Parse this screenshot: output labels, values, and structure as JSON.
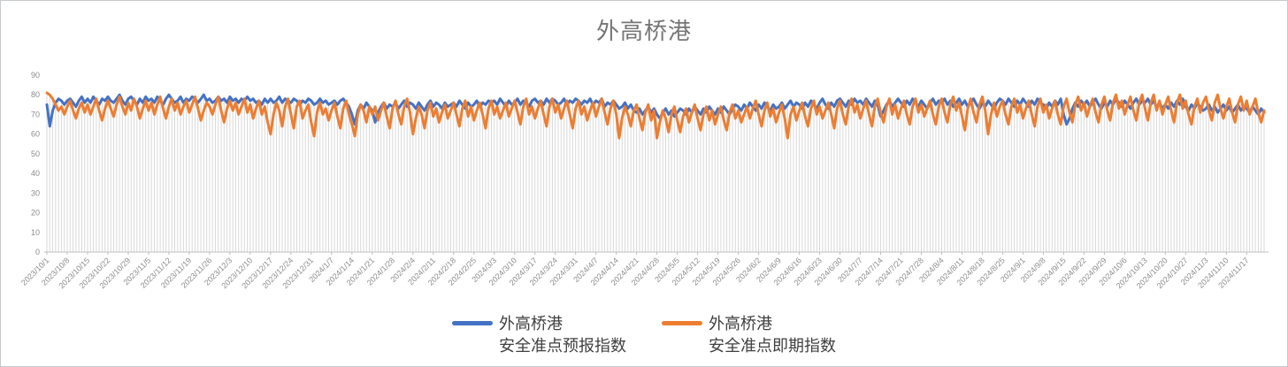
{
  "title": "外高桥港",
  "colors": {
    "series1": "#4472C4",
    "series2": "#ED7D31",
    "drop_line": "#D9D9D9",
    "axis_line": "#BFBFBF",
    "axis_text": "#8C8C8C",
    "title_text": "#767676",
    "legend_text": "#404040",
    "frame_border": "#C6CACD"
  },
  "legend": {
    "items": [
      {
        "label_line1": "外高桥港",
        "label_line2": "安全准点预报指数"
      },
      {
        "label_line1": "外高桥港",
        "label_line2": "安全准点即期指数"
      }
    ]
  },
  "chart_data": {
    "type": "line",
    "title": "外高桥港",
    "xlabel": "",
    "ylabel": "",
    "ylim": [
      0,
      90
    ],
    "y_ticks": [
      0,
      10,
      20,
      30,
      40,
      50,
      60,
      70,
      80,
      90
    ],
    "grid": false,
    "drop_lines": true,
    "legend_position": "bottom",
    "points_per_tick": 7,
    "x_tick_labels": [
      "2023/10/1",
      "2023/10/8",
      "2023/10/15",
      "2023/10/22",
      "2023/10/29",
      "2023/11/5",
      "2023/11/12",
      "2023/11/19",
      "2023/11/26",
      "2023/12/3",
      "2023/12/10",
      "2023/12/17",
      "2023/12/24",
      "2023/12/31",
      "2024/1/7",
      "2024/1/14",
      "2024/1/21",
      "2024/1/28",
      "2024/2/4",
      "2024/2/11",
      "2024/2/18",
      "2024/2/25",
      "2024/3/3",
      "2024/3/10",
      "2024/3/17",
      "2024/3/24",
      "2024/3/31",
      "2024/4/7",
      "2024/4/14",
      "2024/4/21",
      "2024/4/28",
      "2024/5/5",
      "2024/5/12",
      "2024/5/19",
      "2024/5/26",
      "2024/6/2",
      "2024/6/9",
      "2024/6/16",
      "2024/6/23",
      "2024/6/30",
      "2024/7/7",
      "2024/7/14",
      "2024/7/21",
      "2024/7/28",
      "2024/8/4",
      "2024/8/11",
      "2024/8/18",
      "2024/8/25",
      "2024/9/1",
      "2024/9/8",
      "2024/9/15",
      "2024/9/22",
      "2024/9/29",
      "2024/10/6",
      "2024/10/13",
      "2024/10/20",
      "2024/10/27",
      "2024/11/3",
      "2024/11/10",
      "2024/11/17"
    ],
    "series": [
      {
        "name": "外高桥港 安全准点预报指数",
        "color": "#4472C4",
        "values": [
          75,
          64,
          72,
          76,
          78,
          77,
          75,
          77,
          78,
          76,
          74,
          77,
          79,
          76,
          78,
          76,
          79,
          77,
          75,
          78,
          77,
          79,
          77,
          76,
          78,
          80,
          77,
          75,
          78,
          79,
          77,
          75,
          78,
          76,
          79,
          77,
          78,
          76,
          79,
          77,
          75,
          78,
          80,
          78,
          76,
          77,
          79,
          76,
          78,
          77,
          79,
          78,
          76,
          78,
          80,
          77,
          78,
          76,
          77,
          79,
          77,
          78,
          76,
          79,
          77,
          78,
          76,
          78,
          77,
          79,
          77,
          78,
          76,
          77,
          75,
          78,
          76,
          78,
          76,
          77,
          79,
          76,
          78,
          77,
          76,
          78,
          77,
          75,
          77,
          76,
          78,
          77,
          75,
          76,
          78,
          76,
          77,
          75,
          76,
          77,
          75,
          77,
          78,
          76,
          74,
          70,
          65,
          72,
          75,
          73,
          76,
          74,
          72,
          66,
          71,
          74,
          76,
          73,
          75,
          74,
          76,
          73,
          75,
          77,
          74,
          76,
          75,
          73,
          76,
          74,
          72,
          75,
          77,
          74,
          76,
          75,
          73,
          76,
          74,
          75,
          76,
          74,
          77,
          75,
          73,
          76,
          74,
          75,
          77,
          74,
          76,
          75,
          77,
          76,
          77,
          75,
          78,
          76,
          74,
          77,
          75,
          76,
          78,
          75,
          77,
          76,
          74,
          77,
          78,
          76,
          77,
          75,
          78,
          76,
          78,
          77,
          75,
          76,
          78,
          75,
          77,
          76,
          78,
          77,
          75,
          77,
          76,
          78,
          75,
          77,
          76,
          78,
          74,
          76,
          75,
          77,
          75,
          73,
          74,
          76,
          73,
          75,
          72,
          71,
          73,
          70,
          72,
          74,
          71,
          73,
          70,
          68,
          71,
          73,
          70,
          72,
          69,
          71,
          73,
          72,
          70,
          73,
          71,
          74,
          72,
          70,
          73,
          71,
          74,
          72,
          70,
          73,
          71,
          74,
          72,
          70,
          73,
          75,
          74,
          72,
          75,
          73,
          76,
          74,
          72,
          75,
          73,
          76,
          74,
          72,
          75,
          73,
          74,
          76,
          73,
          75,
          77,
          74,
          76,
          75,
          73,
          76,
          74,
          77,
          75,
          73,
          76,
          78,
          75,
          73,
          76,
          74,
          77,
          78,
          76,
          74,
          77,
          75,
          78,
          76,
          77,
          75,
          78,
          76,
          74,
          77,
          75,
          69,
          72,
          75,
          77,
          74,
          76,
          78,
          76,
          74,
          77,
          75,
          78,
          76,
          74,
          77,
          75,
          73,
          76,
          78,
          75,
          77,
          76,
          78,
          75,
          77,
          74,
          76,
          78,
          75,
          77,
          74,
          76,
          78,
          75,
          73,
          76,
          74,
          77,
          75,
          73,
          76,
          78,
          77,
          75,
          78,
          76,
          74,
          77,
          75,
          78,
          76,
          74,
          77,
          75,
          78,
          76,
          75,
          73,
          76,
          74,
          77,
          75,
          78,
          70,
          65,
          68,
          73,
          76,
          74,
          77,
          75,
          77,
          74,
          76,
          78,
          75,
          73,
          76,
          74,
          77,
          75,
          78,
          76,
          74,
          77,
          75,
          73,
          76,
          78,
          75,
          77,
          76,
          78,
          75,
          77,
          74,
          76,
          73,
          75,
          73,
          76,
          74,
          77,
          75,
          78,
          74,
          72,
          75,
          73,
          76,
          74,
          72,
          73,
          75,
          72,
          74,
          71,
          73,
          75,
          72,
          74,
          71,
          73,
          75,
          72,
          74,
          73,
          71,
          74,
          72,
          70,
          73,
          71
        ]
      },
      {
        "name": "外高桥港 安全准点即期指数",
        "color": "#ED7D31",
        "values": [
          81,
          80,
          78,
          75,
          72,
          74,
          70,
          74,
          77,
          72,
          68,
          73,
          76,
          71,
          75,
          70,
          74,
          78,
          72,
          67,
          73,
          77,
          73,
          69,
          75,
          79,
          74,
          70,
          76,
          72,
          78,
          74,
          68,
          73,
          77,
          72,
          76,
          70,
          75,
          79,
          73,
          68,
          74,
          78,
          72,
          76,
          70,
          74,
          77,
          71,
          75,
          79,
          73,
          67,
          72,
          76,
          74,
          70,
          75,
          79,
          72,
          66,
          73,
          77,
          72,
          76,
          70,
          74,
          78,
          71,
          75,
          68,
          73,
          77,
          70,
          74,
          66,
          60,
          70,
          76,
          72,
          64,
          74,
          78,
          70,
          63,
          74,
          77,
          68,
          72,
          75,
          66,
          59,
          71,
          76,
          70,
          73,
          67,
          72,
          76,
          69,
          63,
          73,
          77,
          70,
          65,
          59,
          70,
          75,
          72,
          66,
          74,
          70,
          74,
          67,
          72,
          76,
          69,
          63,
          73,
          77,
          70,
          65,
          74,
          78,
          71,
          60,
          68,
          74,
          70,
          63,
          72,
          76,
          69,
          73,
          66,
          71,
          75,
          68,
          72,
          76,
          70,
          64,
          73,
          77,
          69,
          74,
          67,
          72,
          76,
          70,
          63,
          73,
          77,
          70,
          74,
          68,
          72,
          76,
          69,
          73,
          77,
          71,
          65,
          74,
          78,
          70,
          74,
          68,
          73,
          77,
          70,
          64,
          74,
          78,
          71,
          75,
          68,
          73,
          77,
          70,
          63,
          73,
          77,
          70,
          74,
          67,
          72,
          76,
          69,
          74,
          78,
          71,
          65,
          73,
          77,
          70,
          58,
          68,
          74,
          70,
          64,
          72,
          75,
          68,
          62,
          71,
          75,
          67,
          72,
          58,
          66,
          72,
          68,
          61,
          70,
          74,
          67,
          61,
          69,
          73,
          66,
          71,
          75,
          68,
          62,
          70,
          74,
          67,
          72,
          65,
          70,
          74,
          67,
          62,
          71,
          75,
          68,
          72,
          66,
          70,
          74,
          68,
          73,
          77,
          70,
          64,
          72,
          76,
          69,
          73,
          66,
          71,
          75,
          68,
          58,
          70,
          74,
          67,
          72,
          76,
          69,
          64,
          73,
          77,
          70,
          74,
          68,
          72,
          76,
          70,
          63,
          73,
          77,
          70,
          65,
          74,
          78,
          71,
          75,
          68,
          73,
          77,
          70,
          64,
          74,
          78,
          71,
          66,
          74,
          78,
          70,
          75,
          68,
          73,
          77,
          70,
          65,
          74,
          78,
          71,
          75,
          69,
          73,
          77,
          70,
          65,
          74,
          78,
          71,
          66,
          75,
          79,
          72,
          76,
          69,
          62,
          73,
          78,
          71,
          66,
          75,
          79,
          72,
          60,
          70,
          76,
          69,
          74,
          77,
          70,
          65,
          74,
          78,
          71,
          75,
          68,
          73,
          77,
          70,
          64,
          74,
          78,
          71,
          75,
          68,
          73,
          77,
          70,
          65,
          74,
          78,
          71,
          66,
          75,
          79,
          72,
          76,
          69,
          74,
          78,
          71,
          66,
          75,
          79,
          72,
          67,
          76,
          80,
          73,
          77,
          70,
          75,
          79,
          72,
          67,
          76,
          80,
          73,
          67,
          76,
          80,
          72,
          77,
          70,
          75,
          79,
          72,
          66,
          76,
          80,
          73,
          77,
          70,
          65,
          74,
          78,
          71,
          76,
          79,
          72,
          67,
          76,
          80,
          73,
          68,
          74,
          78,
          71,
          66,
          75,
          79,
          72,
          77,
          70,
          74,
          78,
          71,
          66,
          72
        ]
      }
    ]
  }
}
